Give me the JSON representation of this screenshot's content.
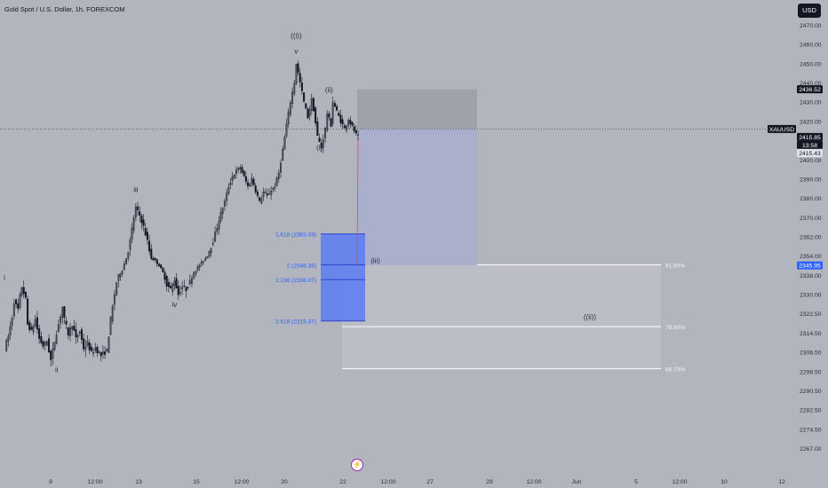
{
  "title": "Gold Spot / U.S. Dollar, 1h, FOREXCOM",
  "currency_button": "USD",
  "colors": {
    "background": "#b2b5be",
    "candle": "#131722",
    "fib_box": "#5b7cf5",
    "fib_text": "#2962ff",
    "position_top": "#9fa2aa",
    "position_bottom": "#aab0cc",
    "price_line": "#e0445a",
    "retrace_zone": "#bcbfc6"
  },
  "chart_data": {
    "type": "candlestick",
    "symbol": "XAUUSD",
    "timeframe": "1h",
    "ylim": [
      2262,
      2477
    ],
    "grid": false,
    "y_axis": {
      "ticks": [
        2470.0,
        2460.0,
        2450.0,
        2440.0,
        2430.0,
        2420.0,
        2410.0,
        2400.0,
        2390.0,
        2380.0,
        2370.0,
        2362.0,
        2354.0,
        2338.0,
        2330.0,
        2322.5,
        2314.5,
        2306.5,
        2298.5,
        2290.5,
        2282.5,
        2274.5,
        2267.0
      ],
      "labels": [
        "2470.00",
        "2460.00",
        "2450.00",
        "2440.00",
        "2430.00",
        "2420.00",
        "2410.00",
        "2400.00",
        "2390.00",
        "2380.00",
        "2370.00",
        "2362.00",
        "2354.00",
        "2338.00",
        "2330.00",
        "2322.50",
        "2314.50",
        "2306.50",
        "2298.50",
        "2290.50",
        "2282.50",
        "2274.50",
        "2267.00"
      ]
    },
    "x_axis": {
      "labels": [
        "8",
        "12:00",
        "13",
        "15",
        "12:00",
        "20",
        "22",
        "12:00",
        "27",
        "29",
        "12:00",
        "Jun",
        "5",
        "12:00",
        "10",
        "12"
      ]
    },
    "price_tags": [
      {
        "label": "2436.52",
        "value": 2436.52,
        "style": "dark"
      },
      {
        "label": "XAUUSD",
        "value": 2415.85,
        "style": "dark"
      },
      {
        "label": "2415.85",
        "value": 2415.85,
        "style": "dark"
      },
      {
        "label": "13:58",
        "value": 2413.3,
        "style": "dark"
      },
      {
        "label": "2415.43",
        "value": 2410.7,
        "style": "light"
      },
      {
        "label": "2345.95",
        "value": 2345.95,
        "style": "blue"
      }
    ],
    "current_price": 2415.85,
    "price_path": [
      [
        0,
        2308
      ],
      [
        2,
        2313
      ],
      [
        4,
        2321
      ],
      [
        5,
        2327
      ],
      [
        7,
        2324
      ],
      [
        8,
        2329
      ],
      [
        9,
        2333
      ],
      [
        11,
        2328
      ],
      [
        12,
        2318
      ],
      [
        14,
        2315
      ],
      [
        16,
        2320
      ],
      [
        18,
        2312
      ],
      [
        20,
        2309
      ],
      [
        22,
        2311
      ],
      [
        24,
        2303
      ],
      [
        26,
        2311
      ],
      [
        28,
        2318
      ],
      [
        30,
        2325
      ],
      [
        31,
        2320
      ],
      [
        33,
        2314
      ],
      [
        35,
        2318
      ],
      [
        37,
        2312
      ],
      [
        39,
        2315
      ],
      [
        41,
        2308
      ],
      [
        43,
        2310
      ],
      [
        45,
        2306
      ],
      [
        47,
        2308
      ],
      [
        50,
        2305
      ],
      [
        53,
        2307
      ],
      [
        55,
        2320
      ],
      [
        58,
        2335
      ],
      [
        61,
        2342
      ],
      [
        63,
        2352
      ],
      [
        65,
        2360
      ],
      [
        67,
        2370
      ],
      [
        68,
        2375
      ],
      [
        70,
        2371
      ],
      [
        72,
        2366
      ],
      [
        74,
        2360
      ],
      [
        76,
        2352
      ],
      [
        78,
        2350
      ],
      [
        80,
        2346
      ],
      [
        82,
        2340
      ],
      [
        84,
        2334
      ],
      [
        86,
        2332
      ],
      [
        88,
        2336
      ],
      [
        90,
        2330
      ],
      [
        92,
        2333
      ],
      [
        94,
        2332
      ],
      [
        96,
        2335
      ],
      [
        98,
        2340
      ],
      [
        100,
        2344
      ],
      [
        102,
        2348
      ],
      [
        104,
        2352
      ],
      [
        106,
        2356
      ],
      [
        108,
        2360
      ],
      [
        110,
        2366
      ],
      [
        112,
        2372
      ],
      [
        114,
        2378
      ],
      [
        116,
        2386
      ],
      [
        118,
        2391
      ],
      [
        120,
        2394
      ],
      [
        122,
        2396
      ],
      [
        124,
        2391
      ],
      [
        126,
        2386
      ],
      [
        128,
        2390
      ],
      [
        130,
        2384
      ],
      [
        132,
        2378
      ],
      [
        134,
        2383
      ],
      [
        136,
        2381
      ],
      [
        138,
        2384
      ],
      [
        140,
        2386
      ],
      [
        142,
        2393
      ],
      [
        144,
        2405
      ],
      [
        146,
        2418
      ],
      [
        148,
        2430
      ],
      [
        150,
        2440
      ],
      [
        151,
        2450
      ],
      [
        153,
        2440
      ],
      [
        155,
        2430
      ],
      [
        157,
        2422
      ],
      [
        159,
        2431
      ],
      [
        160,
        2426
      ],
      [
        162,
        2412
      ],
      [
        164,
        2406
      ],
      [
        166,
        2416
      ],
      [
        167,
        2424
      ],
      [
        169,
        2418
      ],
      [
        170,
        2430
      ],
      [
        172,
        2425
      ],
      [
        174,
        2420
      ],
      [
        176,
        2416
      ],
      [
        178,
        2421
      ],
      [
        180,
        2417
      ],
      [
        182,
        2413
      ],
      [
        183,
        2412
      ]
    ],
    "fib_extension": {
      "levels": [
        {
          "ratio": "1.618",
          "value": 2363.08,
          "label": "1.618 (2363.08)"
        },
        {
          "ratio": "2",
          "value": 2346.38,
          "label": "2 (2346.38)"
        },
        {
          "ratio": "2.236",
          "value": 2336.07,
          "label": "2.236 (2336.07)"
        },
        {
          "ratio": "2.618",
          "value": 2319.37,
          "label": "2.618 (2319.37)"
        }
      ]
    },
    "fib_retracement": {
      "levels": [
        {
          "label": "61.80%",
          "value": 2346.38
        },
        {
          "label": "78.60%",
          "value": 2317.0
        },
        {
          "label": "88.70%",
          "value": 2299.5
        }
      ]
    },
    "position": {
      "entry": 2415.85,
      "target_top": 2436.52,
      "stop_bottom": 2345.95
    },
    "wave_labels": [
      {
        "text": "i",
        "x": 0,
        "y": 2336
      },
      {
        "text": "ii",
        "x": 27,
        "y": 2298
      },
      {
        "text": "iii",
        "x": 68,
        "y": 2383
      },
      {
        "text": "iv",
        "x": 88,
        "y": 2325
      },
      {
        "text": "((i))",
        "x": 151,
        "y": 2463
      },
      {
        "text": "v",
        "x": 151,
        "y": 2455
      },
      {
        "text": "(ii)",
        "x": 168,
        "y": 2435
      },
      {
        "text": "(i)",
        "x": 163,
        "y": 2405
      },
      {
        "text": "(iii)",
        "x": 192,
        "y": 2348
      },
      {
        "text": "((ii))",
        "x": 303,
        "y": 2320
      }
    ]
  }
}
